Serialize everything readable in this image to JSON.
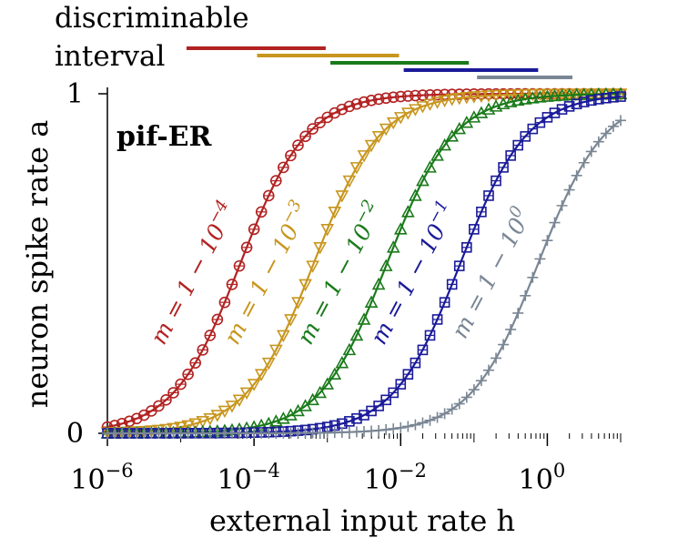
{
  "chart_data": {
    "type": "line",
    "title": "",
    "panel_label": "pif-ER",
    "xlabel": "external input rate h",
    "ylabel": "neuron spike rate a",
    "x_scale": "log",
    "xlim": [
      1e-06,
      10
    ],
    "ylim": [
      0,
      1
    ],
    "x_ticks": [
      {
        "value": 1e-06,
        "base": "10",
        "exp": "−6"
      },
      {
        "value": 0.0001,
        "base": "10",
        "exp": "−4"
      },
      {
        "value": 0.01,
        "base": "10",
        "exp": "−2"
      },
      {
        "value": 1,
        "base": "10",
        "exp": "0"
      }
    ],
    "y_ticks": [
      {
        "value": 0,
        "label": "0"
      },
      {
        "value": 1,
        "label": "1"
      }
    ],
    "legend_title": [
      "discriminable",
      "interval"
    ],
    "series": [
      {
        "name": "m = 1 − 10−4",
        "label_lhs": "m = 1 − 10",
        "label_exp": "−4",
        "color": "#b22222",
        "marker": "circle",
        "h_mid": 6.5e-05,
        "interval": [
          1.2e-05,
          0.00095
        ]
      },
      {
        "name": "m = 1 − 10−3",
        "label_lhs": "m = 1 − 10",
        "label_exp": "−3",
        "color": "#c8961e",
        "marker": "triangle-down",
        "h_mid": 0.00065,
        "interval": [
          0.00011,
          0.0095
        ]
      },
      {
        "name": "m = 1 − 10−2",
        "label_lhs": "m = 1 − 10",
        "label_exp": "−2",
        "color": "#1a7a1a",
        "marker": "triangle-up",
        "h_mid": 0.0065,
        "interval": [
          0.0011,
          0.085
        ]
      },
      {
        "name": "m = 1 − 10−1",
        "label_lhs": "m = 1 − 10",
        "label_exp": "−1",
        "color": "#1a1a9a",
        "marker": "square",
        "h_mid": 0.065,
        "interval": [
          0.011,
          0.75
        ]
      },
      {
        "name": "m = 1 − 100",
        "label_lhs": "m = 1 − 10",
        "label_exp": "0",
        "color": "#7a8694",
        "marker": "plus",
        "h_mid": 0.75,
        "interval": [
          0.11,
          2.2
        ]
      }
    ]
  }
}
